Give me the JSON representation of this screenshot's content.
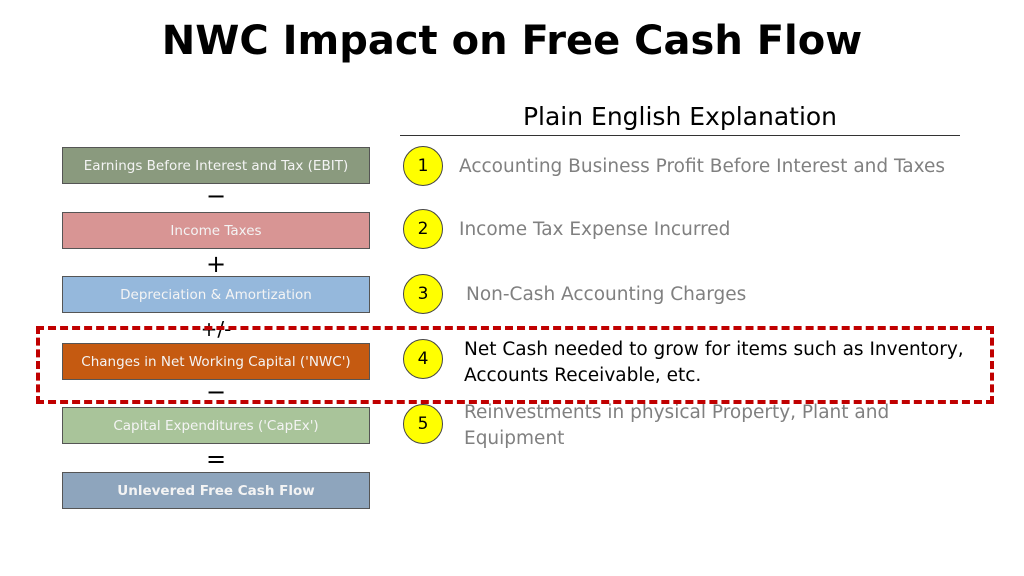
{
  "title": "NWC Impact on Free Cash Flow",
  "subtitle": "Plain English Explanation",
  "items": [
    {
      "label": "Earnings Before Interest and Tax (EBIT)",
      "color": "#8a9a7e",
      "num": "1",
      "explanation": "Accounting Business Profit Before Interest and Taxes"
    },
    {
      "label": "Income Taxes",
      "color": "#d89594",
      "num": "2",
      "explanation": "Income Tax Expense Incurred"
    },
    {
      "label": "Depreciation & Amortization",
      "color": "#95b8dc",
      "num": "3",
      "explanation": "Non-Cash Accounting Charges"
    },
    {
      "label": "Changes in Net Working Capital ('NWC')",
      "color": "#c55a11",
      "num": "4",
      "explanation": "Net Cash needed to grow for items such as Inventory, Accounts Receivable, etc."
    },
    {
      "label": "Capital Expenditures ('CapEx')",
      "color": "#a9c49a",
      "num": "5",
      "explanation": "Reinvestments in physical Property, Plant and Equipment"
    },
    {
      "label": "Unlevered Free Cash Flow",
      "color": "#8ea5bd"
    }
  ],
  "operators": [
    "−",
    "+",
    "+/-",
    "−",
    "="
  ],
  "highlight_color": "#c00000"
}
